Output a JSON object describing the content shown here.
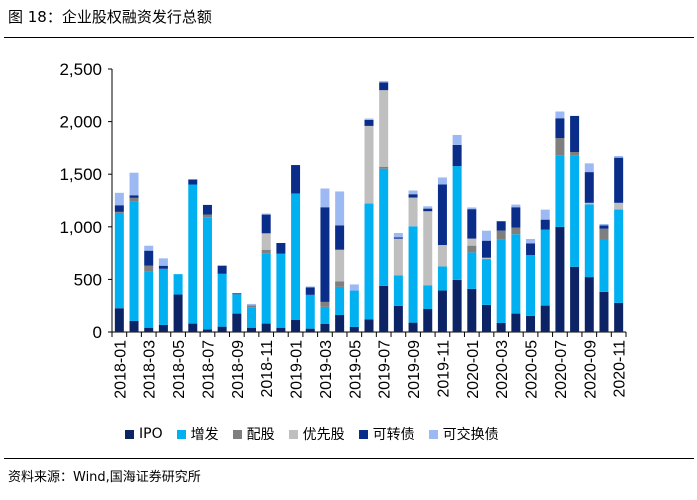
{
  "title": "图 18：企业股权融资发行总额",
  "source": "资料来源：Wind,国海证券研究所",
  "chart_data": {
    "type": "bar",
    "stacked": true,
    "title": "",
    "xlabel": "",
    "ylabel": "",
    "ylim": [
      0,
      2500
    ],
    "yticks": [
      "0",
      "500",
      "1,000",
      "1,500",
      "2,000",
      "2,500"
    ],
    "ytick_values": [
      0,
      500,
      1000,
      1500,
      2000,
      2500
    ],
    "grid": false,
    "legend_position": "bottom",
    "categories": [
      "2018-01",
      "2018-02",
      "2018-03",
      "2018-04",
      "2018-05",
      "2018-06",
      "2018-07",
      "2018-08",
      "2018-09",
      "2018-10",
      "2018-11",
      "2018-12",
      "2019-01",
      "2019-02",
      "2019-03",
      "2019-04",
      "2019-05",
      "2019-06",
      "2019-07",
      "2019-08",
      "2019-09",
      "2019-10",
      "2019-11",
      "2019-12",
      "2020-01",
      "2020-02",
      "2020-03",
      "2020-04",
      "2020-05",
      "2020-06",
      "2020-07",
      "2020-08",
      "2020-09",
      "2020-10",
      "2020-11"
    ],
    "xtick_labels": [
      "2018-01",
      "2018-03",
      "2018-05",
      "2018-07",
      "2018-09",
      "2018-11",
      "2019-01",
      "2019-03",
      "2019-05",
      "2019-07",
      "2019-09",
      "2019-11",
      "2020-01",
      "2020-03",
      "2020-05",
      "2020-07",
      "2020-09",
      "2020-11"
    ],
    "series": [
      {
        "name": "IPO",
        "color": "#0c2366",
        "values": [
          226,
          105,
          41,
          67,
          356,
          80,
          25,
          51,
          175,
          41,
          80,
          41,
          114,
          32,
          76,
          162,
          48,
          121,
          439,
          248,
          89,
          219,
          394,
          496,
          410,
          258,
          86,
          175,
          153,
          251,
          999,
          620,
          522,
          382,
          277
        ]
      },
      {
        "name": "增发",
        "color": "#00b0f0",
        "values": [
          906,
          1132,
          538,
          534,
          194,
          1322,
          1066,
          502,
          184,
          194,
          664,
          703,
          1203,
          321,
          163,
          267,
          346,
          1100,
          1113,
          289,
          916,
          223,
          229,
          1081,
          347,
          435,
          792,
          754,
          578,
          722,
          680,
          1059,
          690,
          502,
          887
        ]
      },
      {
        "name": "配股",
        "color": "#7f7f7f",
        "values": [
          10,
          38,
          51,
          0,
          0,
          0,
          25,
          0,
          0,
          19,
          38,
          0,
          0,
          0,
          47,
          51,
          0,
          0,
          19,
          0,
          0,
          0,
          0,
          0,
          64,
          0,
          86,
          64,
          0,
          0,
          165,
          32,
          0,
          98,
          0
        ]
      },
      {
        "name": "优先股",
        "color": "#bfbfbf",
        "values": [
          0,
          0,
          0,
          0,
          0,
          0,
          0,
          0,
          0,
          0,
          156,
          0,
          0,
          0,
          0,
          302,
          0,
          738,
          728,
          350,
          273,
          706,
          204,
          0,
          67,
          13,
          0,
          0,
          0,
          0,
          0,
          0,
          16,
          0,
          64
        ]
      },
      {
        "name": "可转债",
        "color": "#0a2d8a",
        "values": [
          63,
          25,
          143,
          29,
          0,
          48,
          92,
          77,
          9,
          0,
          178,
          102,
          270,
          70,
          900,
          232,
          0,
          57,
          73,
          13,
          32,
          25,
          575,
          201,
          280,
          162,
          89,
          193,
          112,
          95,
          188,
          343,
          292,
          32,
          429
        ]
      },
      {
        "name": "可交换债",
        "color": "#9db9f3",
        "values": [
          118,
          214,
          47,
          70,
          0,
          0,
          0,
          5,
          0,
          13,
          10,
          0,
          0,
          10,
          178,
          322,
          58,
          13,
          13,
          41,
          35,
          22,
          67,
          95,
          16,
          95,
          0,
          25,
          41,
          95,
          64,
          0,
          83,
          13,
          16
        ]
      }
    ]
  }
}
